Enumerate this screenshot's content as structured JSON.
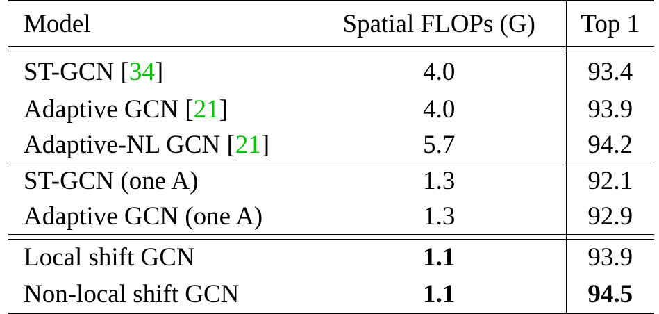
{
  "table": {
    "headers": {
      "model": "Model",
      "flops": "Spatial FLOPs (G)",
      "top1": "Top 1"
    },
    "rows": [
      {
        "model": "ST-GCN ",
        "cite": "34",
        "flops": "4.0",
        "top1": "93.4"
      },
      {
        "model": "Adaptive GCN ",
        "cite": "21",
        "flops": "4.0",
        "top1": "93.9"
      },
      {
        "model": "Adaptive-NL GCN ",
        "cite": "21",
        "flops": "5.7",
        "top1": "94.2"
      },
      {
        "model": "ST-GCN (one A)",
        "flops": "1.3",
        "top1": "92.1"
      },
      {
        "model": "Adaptive GCN (one A)",
        "flops": "1.3",
        "top1": "92.9"
      },
      {
        "model": "Local shift GCN",
        "flops": "1.1",
        "top1": "93.9"
      },
      {
        "model": "Non-local shift GCN",
        "flops": "1.1",
        "top1": "94.5"
      }
    ],
    "bracket_open": "[",
    "bracket_close": "]",
    "cite_color": "#00c800"
  }
}
